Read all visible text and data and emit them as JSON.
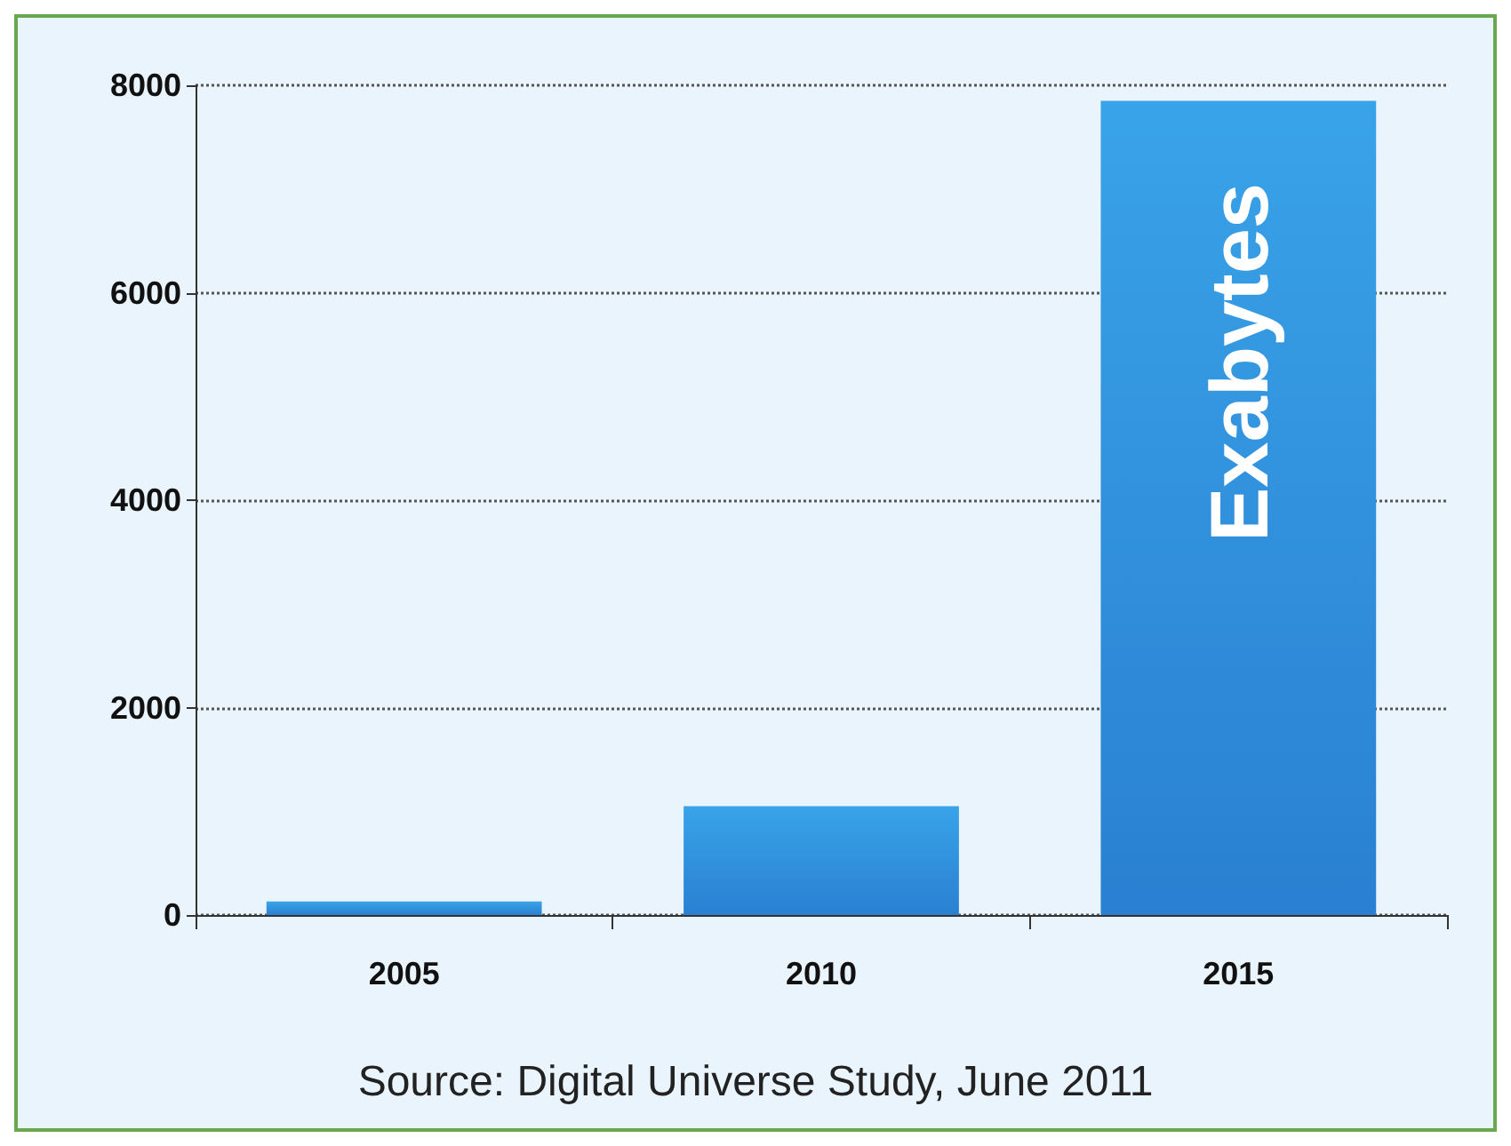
{
  "chart_data": {
    "type": "bar",
    "ylabel": "Exabytes",
    "categories": [
      "2005",
      "2010",
      "2015"
    ],
    "series": [
      {
        "color": "#2a80d2",
        "values": [
          130,
          1050,
          7850
        ]
      }
    ],
    "ylim": [
      0,
      8000
    ],
    "yticks": [
      0,
      2000,
      4000,
      6000,
      8000
    ],
    "grid": "y",
    "annotations": [
      "Source: Digital Universe Study, June 2011"
    ]
  }
}
